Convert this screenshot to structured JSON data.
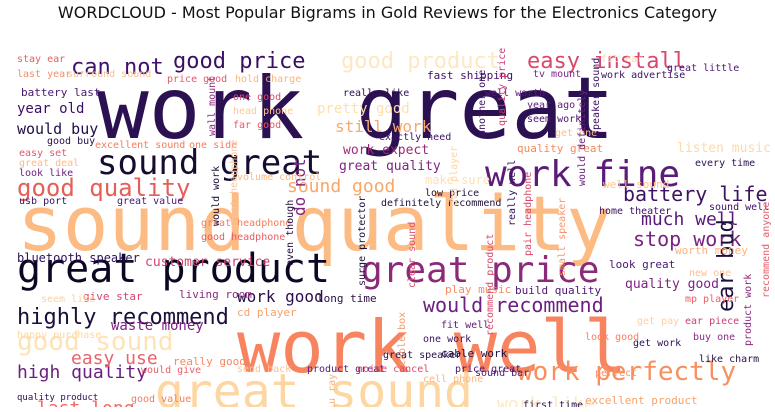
{
  "title": "WORDCLOUD - Most Popular Bigrams in Gold Reviews for the Electronics Category",
  "colormap": "magma",
  "background": "#ffffff",
  "words": [
    {
      "text": "work great",
      "color": "#2b1152"
    },
    {
      "text": "sound quality",
      "color": "#fdbb84"
    },
    {
      "text": "work well",
      "color": "#f8845f"
    },
    {
      "text": "great sound",
      "color": "#fdd6a2"
    },
    {
      "text": "great product",
      "color": "#0c0824"
    },
    {
      "text": "sound great",
      "color": "#160c31"
    },
    {
      "text": "work fine",
      "color": "#5b1b76"
    },
    {
      "text": "great price",
      "color": "#8a2a78"
    },
    {
      "text": "good quality",
      "color": "#e55e57"
    },
    {
      "text": "highly recommend",
      "color": "#1a0f3a"
    },
    {
      "text": "good sound",
      "color": "#fde3b7"
    },
    {
      "text": "battery life",
      "color": "#3d1365"
    },
    {
      "text": "work perfectly",
      "color": "#f79060"
    },
    {
      "text": "can not",
      "color": "#43106d"
    },
    {
      "text": "good price",
      "color": "#3a0f63"
    },
    {
      "text": "good product",
      "color": "#fde8c2"
    },
    {
      "text": "easy install",
      "color": "#d9476d"
    },
    {
      "text": "stop work",
      "color": "#7a2381"
    },
    {
      "text": "much well",
      "color": "#581a7a"
    },
    {
      "text": "would recommend",
      "color": "#6b1f80"
    },
    {
      "text": "ear bud",
      "color": "#1d0f3c"
    },
    {
      "text": "high quality",
      "color": "#6a1e7f"
    },
    {
      "text": "easy use",
      "color": "#e8636b"
    },
    {
      "text": "last long",
      "color": "#f06a63"
    },
    {
      "text": "quality sound",
      "color": "#f7a566"
    },
    {
      "text": "hdmi cable",
      "color": "#d14a6d"
    },
    {
      "text": "well make",
      "color": "#8c2b84"
    },
    {
      "text": "work like",
      "color": "#fde8c0"
    },
    {
      "text": "perfectly",
      "color": "#fa9b63"
    },
    {
      "text": "sound good",
      "color": "#f9a768"
    },
    {
      "text": "work good",
      "color": "#2a0d4d"
    },
    {
      "text": "customer service",
      "color": "#d3436e"
    },
    {
      "text": "bluetooth speaker",
      "color": "#2e1158"
    },
    {
      "text": "waste money",
      "color": "#7c2382"
    },
    {
      "text": "would buy",
      "color": "#1e0e44"
    },
    {
      "text": "year old",
      "color": "#3a0e66"
    },
    {
      "text": "quality good",
      "color": "#7b2382"
    },
    {
      "text": "do not",
      "color": "#822682"
    },
    {
      "text": "work expect",
      "color": "#9a2d7a"
    },
    {
      "text": "great quality",
      "color": "#7e2482"
    },
    {
      "text": "still work",
      "color": "#f6a96b"
    },
    {
      "text": "pretty good",
      "color": "#fde1ad"
    },
    {
      "text": "stay ear",
      "color": "#e26163"
    },
    {
      "text": "last year",
      "color": "#f08f6a"
    },
    {
      "text": "battery last",
      "color": "#4a1470"
    },
    {
      "text": "fast shipping",
      "color": "#3d1064"
    },
    {
      "text": "surround sound",
      "color": "#f3c39b"
    },
    {
      "text": "price good",
      "color": "#e05a6a"
    },
    {
      "text": "hold charge",
      "color": "#fbb47d"
    },
    {
      "text": "well worth",
      "color": "#571a74"
    },
    {
      "text": "tv mount",
      "color": "#7d2586"
    },
    {
      "text": "fit ear",
      "color": "#fcd7b0"
    },
    {
      "text": "great little",
      "color": "#4e1572"
    },
    {
      "text": "work advertise",
      "color": "#3c1064"
    },
    {
      "text": "one good",
      "color": "#d84c6c"
    },
    {
      "text": "head phone",
      "color": "#fec995"
    },
    {
      "text": "far good",
      "color": "#e5566a"
    },
    {
      "text": "really like",
      "color": "#2c0f52"
    },
    {
      "text": "exactly need",
      "color": "#3a1160"
    },
    {
      "text": "year ago",
      "color": "#5f1b78"
    },
    {
      "text": "seem work",
      "color": "#4d1470"
    },
    {
      "text": "get one",
      "color": "#fbbf87"
    },
    {
      "text": "quality great",
      "color": "#f58a5d"
    },
    {
      "text": "listen music",
      "color": "#fdd9a8"
    },
    {
      "text": "every time",
      "color": "#2a1150"
    },
    {
      "text": "well sound",
      "color": "#fcc48d"
    },
    {
      "text": "sound well",
      "color": "#3a1064"
    },
    {
      "text": "worth money",
      "color": "#fdb280"
    },
    {
      "text": "new one",
      "color": "#fbc191"
    },
    {
      "text": "look great",
      "color": "#4b1670"
    },
    {
      "text": "mp player",
      "color": "#f15c68"
    },
    {
      "text": "ear piece",
      "color": "#c83e73"
    },
    {
      "text": "buy one",
      "color": "#8b2b83"
    },
    {
      "text": "get pay",
      "color": "#fdd09c"
    },
    {
      "text": "like charm",
      "color": "#271046"
    },
    {
      "text": "look good",
      "color": "#f97e61"
    },
    {
      "text": "get work",
      "color": "#2e1054"
    },
    {
      "text": "excellent product",
      "color": "#f7a26b"
    },
    {
      "text": "arrive time",
      "color": "#7f2682"
    },
    {
      "text": "well make",
      "color": "#8c2b84"
    },
    {
      "text": "first time",
      "color": "#2b0f50"
    },
    {
      "text": "perfect",
      "color": "#fa8e64"
    },
    {
      "text": "sound bar",
      "color": "#572178"
    },
    {
      "text": "price great",
      "color": "#4b1570"
    },
    {
      "text": "product great",
      "color": "#571a76"
    },
    {
      "text": "noise cancel",
      "color": "#d54c6d"
    },
    {
      "text": "cable work",
      "color": "#211040"
    },
    {
      "text": "one work",
      "color": "#3a1162"
    },
    {
      "text": "fit well",
      "color": "#5a1b77"
    },
    {
      "text": "build quality",
      "color": "#4e1670"
    },
    {
      "text": "play music",
      "color": "#f68b62"
    },
    {
      "text": "long time",
      "color": "#291042"
    },
    {
      "text": "living room",
      "color": "#8a2a81"
    },
    {
      "text": "give star",
      "color": "#d6466d"
    },
    {
      "text": "seem like",
      "color": "#fcd2a1"
    },
    {
      "text": "cd player",
      "color": "#f6a16c"
    },
    {
      "text": "happy purchase",
      "color": "#fdd7a0"
    },
    {
      "text": "really good",
      "color": "#f78a62"
    },
    {
      "text": "would give",
      "color": "#e95e6a"
    },
    {
      "text": "send back",
      "color": "#f9c093"
    },
    {
      "text": "cell phone",
      "color": "#fbb783"
    },
    {
      "text": "quality product",
      "color": "#2d0e53"
    },
    {
      "text": "good value",
      "color": "#f07d5e"
    },
    {
      "text": "sound like",
      "color": "#f48264"
    },
    {
      "text": "work perfect",
      "color": "#d9546a"
    },
    {
      "text": "great headphone",
      "color": "#f27f5f"
    },
    {
      "text": "good headphone",
      "color": "#e85d64"
    },
    {
      "text": "volume control",
      "color": "#fbb884"
    },
    {
      "text": "make sure",
      "color": "#fde1b6"
    },
    {
      "text": "low price",
      "color": "#250e41"
    },
    {
      "text": "definitely recommend",
      "color": "#1d0d38"
    },
    {
      "text": "great value",
      "color": "#4a1570"
    },
    {
      "text": "usb port",
      "color": "#3a1163"
    },
    {
      "text": "look like",
      "color": "#6e1f80"
    },
    {
      "text": "easy set",
      "color": "#de5a68"
    },
    {
      "text": "great deal",
      "color": "#fdbb86"
    },
    {
      "text": "good buy",
      "color": "#2a0e4c"
    },
    {
      "text": "excellent sound",
      "color": "#ef7d62"
    },
    {
      "text": "one side",
      "color": "#f07e63"
    },
    {
      "text": "wall mount",
      "color": "#8f2b7e"
    },
    {
      "text": "even though",
      "color": "#200c3c"
    },
    {
      "text": "would work",
      "color": "#1d0d36"
    },
    {
      "text": "surge protector",
      "color": "#1d0e3a"
    },
    {
      "text": "recommend product",
      "color": "#d84a6c"
    },
    {
      "text": "cable box",
      "color": "#f89b6e"
    },
    {
      "text": "blu ray",
      "color": "#f6b07b"
    },
    {
      "text": "clear sound",
      "color": "#e5506b"
    },
    {
      "text": "really well",
      "color": "#30125a"
    },
    {
      "text": "pair headphone",
      "color": "#d84a6a"
    },
    {
      "text": "small speaker",
      "color": "#f8976d"
    },
    {
      "text": "dvd player",
      "color": "#fcd6a5"
    },
    {
      "text": "another one",
      "color": "#3e1366"
    },
    {
      "text": "quality price",
      "color": "#c73f74"
    },
    {
      "text": "speaker sound",
      "color": "#3a1060"
    },
    {
      "text": "home theater",
      "color": "#3a1262"
    },
    {
      "text": "would definitely",
      "color": "#6a1f7e"
    },
    {
      "text": "great speaker",
      "color": "#2b0f4e"
    },
    {
      "text": "product work",
      "color": "#8c2a81"
    },
    {
      "text": "recommend anyone",
      "color": "#e55d6a"
    },
    {
      "text": "great headphone",
      "color": "#fbc49a"
    },
    {
      "text": "work expect",
      "color": "#9a2d7a"
    }
  ]
}
